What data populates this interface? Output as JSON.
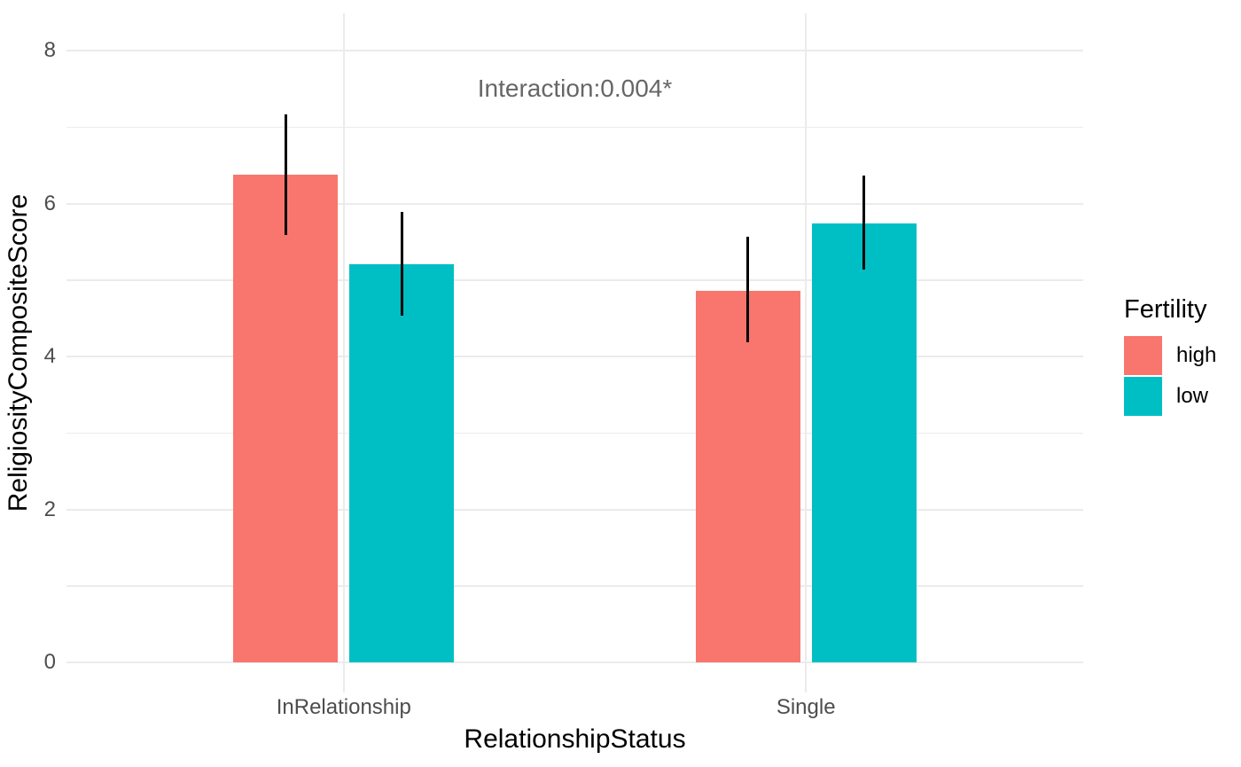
{
  "chart_data": {
    "type": "bar",
    "title": "",
    "annotation": "Interaction:0.004*",
    "xlabel": "RelationshipStatus",
    "ylabel": "ReligiosityCompositeScore",
    "categories": [
      "InRelationship",
      "Single"
    ],
    "y_ticks": [
      0,
      2,
      4,
      6,
      8
    ],
    "y_minor_ticks": [
      1,
      3,
      5,
      7
    ],
    "ylim": [
      0,
      8.5
    ],
    "grid": true,
    "error_bars": true,
    "legend": {
      "title": "Fertility",
      "position": "right",
      "entries": [
        {
          "label": "high",
          "color": "#F8766D"
        },
        {
          "label": "low",
          "color": "#00BFC4"
        }
      ]
    },
    "series": [
      {
        "name": "high",
        "color": "#F8766D",
        "values": [
          6.38,
          4.86
        ],
        "ci_low": [
          5.59,
          4.18
        ],
        "ci_high": [
          7.17,
          5.56
        ]
      },
      {
        "name": "low",
        "color": "#00BFC4",
        "values": [
          5.21,
          5.74
        ],
        "ci_low": [
          4.53,
          5.14
        ],
        "ci_high": [
          5.89,
          6.37
        ]
      }
    ]
  },
  "style": {
    "background": "#FFFFFF",
    "grid_color": "#EBEBEB",
    "tick_label_color": "#4D4D4D",
    "axis_title_color": "#000000",
    "annotation_color": "#666666",
    "error_bar_color": "#000000"
  }
}
